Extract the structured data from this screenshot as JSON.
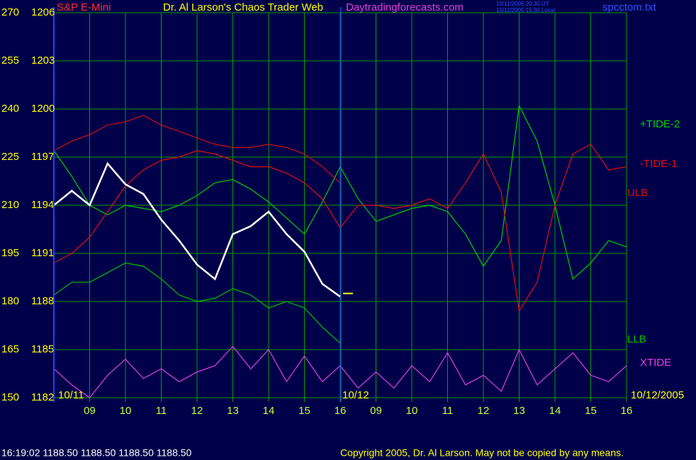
{
  "chart_data": {
    "type": "line",
    "instrument": "S&P E-Mini",
    "title": "Dr. Al Larson's Chaos Trader Web",
    "subtitle": "Daytradingforecasts.com",
    "timestamps": [
      "10/11/2005 20:30 UT",
      "10/11/2005 15:30 Local"
    ],
    "file": "spcctom.txt",
    "date_labels": [
      "10/11",
      "10/12",
      "10/12/2005"
    ],
    "status": "16:19:02  1188.50 1188.50 1188.50 1188.50",
    "copyright": "Copyright 2005, Dr. Al Larson. May not be copied by any means.",
    "grid": true,
    "x": [
      8,
      8.5,
      9,
      9.5,
      10,
      10.5,
      11,
      11.5,
      12,
      12.5,
      13,
      13.5,
      14,
      14.5,
      15,
      15.5,
      16,
      16.5,
      17,
      17.5,
      18,
      18.5,
      19,
      19.5,
      20,
      20.5,
      21,
      21.5,
      22,
      22.5,
      23,
      23.5,
      24
    ],
    "xlim": [
      8,
      24
    ],
    "xticks": [
      {
        "value": 9,
        "label": "09"
      },
      10,
      11,
      12,
      13,
      14,
      15,
      16,
      {
        "value": 17,
        "label": "09"
      },
      {
        "value": 18,
        "label": "10"
      },
      {
        "value": 19,
        "label": "11"
      },
      {
        "value": 20,
        "label": "12"
      },
      {
        "value": 21,
        "label": "13"
      },
      {
        "value": 22,
        "label": "14"
      },
      {
        "value": 23,
        "label": "15"
      },
      {
        "value": 24,
        "label": "16"
      }
    ],
    "ylim": [
      150,
      270
    ],
    "yticks": [
      150,
      165,
      180,
      195,
      210,
      225,
      240,
      255,
      270
    ],
    "y2lim": [
      1182,
      1206
    ],
    "y2ticks": [
      1182,
      1185,
      1188,
      1191,
      1194,
      1197,
      1200,
      1203,
      1206
    ],
    "last_price": 1188.5,
    "series": [
      {
        "name": "+TIDE-2",
        "color": "#00d000",
        "values": [
          227,
          219,
          210,
          207,
          210,
          209,
          208,
          210,
          213,
          217,
          218,
          215,
          211,
          206,
          201,
          211,
          222,
          212,
          205,
          207,
          209,
          210,
          208,
          201,
          191,
          199,
          241,
          230,
          210,
          187,
          192,
          199,
          197
        ]
      },
      {
        "name": "-TIDE-1",
        "color": "#e01010",
        "values": [
          192,
          195,
          200,
          208,
          216,
          221,
          224,
          225,
          227,
          226,
          224,
          222,
          222,
          220,
          217,
          212,
          203,
          210,
          210,
          209,
          210,
          212,
          209,
          217,
          226,
          214,
          177,
          186,
          210,
          226,
          229,
          221,
          222
        ]
      },
      {
        "name": "ULB",
        "color": "#d01010",
        "values": [
          227,
          230,
          232,
          235,
          236,
          238,
          235,
          233,
          231,
          229,
          228,
          228,
          229,
          228,
          226,
          222,
          217,
          null,
          null,
          null,
          null,
          null,
          null,
          null,
          null,
          null,
          null,
          null,
          null,
          null,
          null,
          null,
          null
        ]
      },
      {
        "name": "LLB",
        "color": "#00c000",
        "values": [
          182,
          186,
          186,
          189,
          192,
          191,
          187,
          182,
          180,
          181,
          184,
          182,
          178,
          180,
          178,
          172,
          167,
          null,
          null,
          null,
          null,
          null,
          null,
          null,
          null,
          null,
          null,
          null,
          null,
          null,
          null,
          null,
          null
        ]
      },
      {
        "name": "XTIDE",
        "color": "#e040e0",
        "values": [
          159,
          154,
          150,
          157,
          162,
          156,
          159,
          155,
          158,
          160,
          166,
          159,
          165,
          155,
          163,
          155,
          160,
          153,
          158,
          153,
          160,
          155,
          164,
          154,
          157,
          152,
          165,
          154,
          159,
          164,
          157,
          155,
          160
        ]
      },
      {
        "color": "#ffffff",
        "axis": "y2",
        "values": [
          1194,
          1194.9,
          1194,
          1196.6,
          1195.3,
          1194.7,
          1193.1,
          1191.8,
          1190.3,
          1189.4,
          1192.2,
          1192.7,
          1193.6,
          1192.2,
          1191.1,
          1189.1,
          1188.3,
          null,
          null,
          null,
          null,
          null,
          null,
          null,
          null,
          null,
          null,
          null,
          null,
          null,
          null,
          null,
          null
        ]
      }
    ]
  }
}
